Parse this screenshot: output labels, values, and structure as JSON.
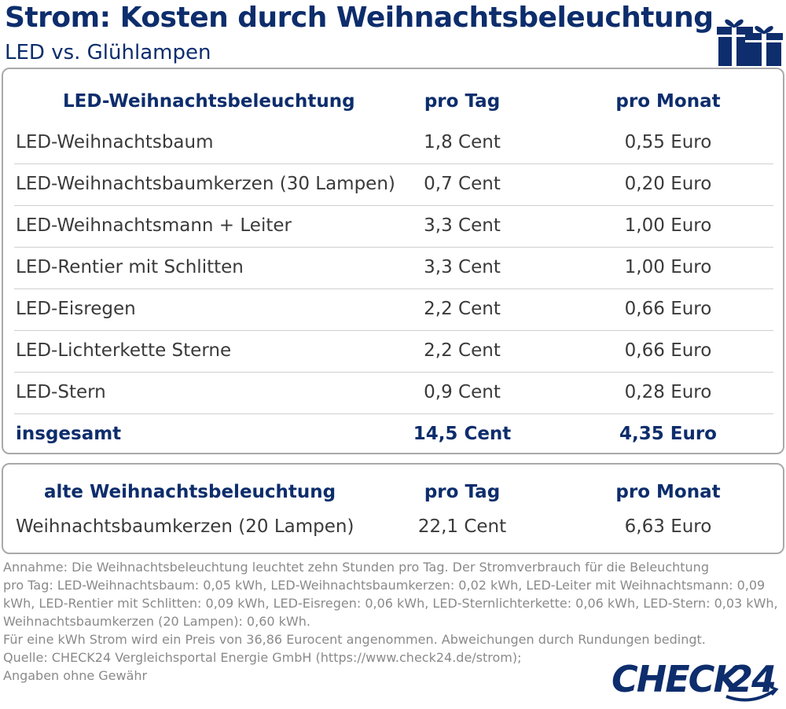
{
  "header": {
    "title": "Strom: Kosten durch Weihnachtsbeleuchtung",
    "subtitle": "LED vs. Glühlampen"
  },
  "led_table": {
    "headers": [
      "LED-Weihnachtsbeleuchtung",
      "pro Tag",
      "pro Monat"
    ],
    "rows": [
      [
        "LED-Weihnachtsbaum",
        "1,8 Cent",
        "0,55 Euro"
      ],
      [
        "LED-Weihnachtsbaumkerzen (30 Lampen)",
        "0,7 Cent",
        "0,20 Euro"
      ],
      [
        "LED-Weihnachtsmann + Leiter",
        "3,3 Cent",
        "1,00 Euro"
      ],
      [
        "LED-Rentier mit Schlitten",
        "3,3 Cent",
        "1,00 Euro"
      ],
      [
        "LED-Eisregen",
        "2,2 Cent",
        "0,66 Euro"
      ],
      [
        "LED-Lichterkette Sterne",
        "2,2 Cent",
        "0,66 Euro"
      ],
      [
        "LED-Stern",
        "0,9 Cent",
        "0,28 Euro"
      ]
    ],
    "total": [
      "insgesamt",
      "14,5 Cent",
      "4,35 Euro"
    ]
  },
  "old_table": {
    "headers": [
      "alte Weihnachtsbeleuchtung",
      "pro Tag",
      "pro Monat"
    ],
    "rows": [
      [
        "Weihnachtsbaumkerzen (20 Lampen)",
        "22,1 Cent",
        "6,63 Euro"
      ]
    ]
  },
  "notes": [
    "Annahme: Die Weihnachtsbeleuchtung leuchtet zehn Stunden pro Tag. Der Stromverbrauch für die Beleuchtung",
    "pro Tag: LED-Weihnachtsbaum: 0,05 kWh, LED-Weihnachtsbaumkerzen: 0,02 kWh, LED-Leiter mit Weihnachtsmann: 0,09",
    "kWh, LED-Rentier mit Schlitten: 0,09 kWh, LED-Eisregen: 0,06 kWh, LED-Sternlichterkette: 0,06 kWh, LED-Stern: 0,03 kWh,",
    "Weihnachtsbaumkerzen (20 Lampen): 0,60 kWh.",
    "Für eine kWh Strom wird ein Preis von 36,86 Eurocent angenommen. Abweichungen durch Rundungen bedingt.",
    "Quelle: CHECK24 Vergleichsportal Energie GmbH (https://www.check24.de/strom);",
    "Angaben ohne Gewähr"
  ],
  "logo": {
    "text_a": "CHECK",
    "text_b": "24"
  },
  "icons": {
    "gift": "gift-icon"
  },
  "colors": {
    "brand": "#0d2d6c",
    "border": "#a9a9a9",
    "note": "#8a8a8a"
  }
}
